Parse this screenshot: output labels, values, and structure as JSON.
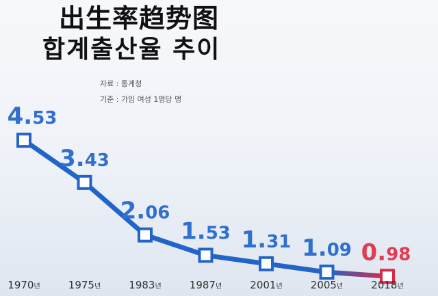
{
  "title_zh": "出生率趋势图",
  "title_ko": "합계출산율 추이",
  "source_label": "자료 : 통계청",
  "basis_label": "기준 : 가임 여성 1명당 명",
  "colors": {
    "line_blue": "#2264c8",
    "marker_fill": "#ffffff",
    "line_red": "#d82a46",
    "label_blue": "#2f6fcf",
    "label_red": "#e23b52",
    "axis": "#333333"
  },
  "chart_data": {
    "type": "line",
    "categories": [
      "1970",
      "1975",
      "1983",
      "1987",
      "2001",
      "2005",
      "2018"
    ],
    "tick_unit": "년",
    "values": [
      4.53,
      3.43,
      2.06,
      1.53,
      1.31,
      1.09,
      0.98
    ],
    "series": [
      {
        "values": [
          4.53,
          3.43,
          2.06,
          1.53,
          1.31,
          1.09,
          0.98
        ]
      }
    ],
    "ylim": [
      0.7,
      4.8
    ],
    "highlight_last": true
  }
}
